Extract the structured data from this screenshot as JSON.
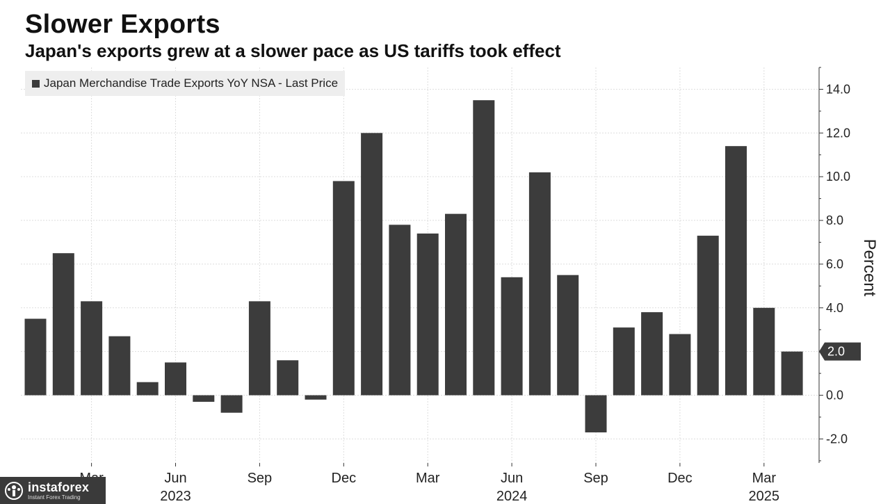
{
  "chart_data": {
    "type": "bar",
    "title": "Slower Exports",
    "subtitle": "Japan's exports grew at a slower pace as US tariffs took effect",
    "ylabel": "Percent",
    "xlabel": "",
    "ylim": [
      -3.1,
      15.0
    ],
    "yticks": [
      14.0,
      12.0,
      10.0,
      8.0,
      6.0,
      4.0,
      0.0,
      -2.0
    ],
    "ytick_labels": [
      "14.0",
      "12.0",
      "10.0",
      "8.0",
      "6.0",
      "4.0",
      "0.0",
      "-2.0"
    ],
    "last_value_label": "2.0",
    "last_value": 2.0,
    "grid": true,
    "legend": [
      "Japan Merchandise Trade Exports YoY NSA - Last Price"
    ],
    "series": [
      {
        "name": "Japan Merchandise Trade Exports YoY NSA - Last Price",
        "color": "#3c3c3c",
        "values": [
          3.5,
          6.5,
          4.3,
          2.7,
          0.6,
          1.5,
          -0.3,
          -0.8,
          4.3,
          1.6,
          -0.2,
          9.8,
          12.0,
          7.8,
          7.4,
          8.3,
          13.5,
          5.4,
          10.2,
          5.5,
          -1.7,
          3.1,
          3.8,
          2.8,
          7.3,
          11.4,
          4.0,
          2.0
        ]
      }
    ],
    "categories": [
      "Jan 2023",
      "Feb 2023",
      "Mar 2023",
      "Apr 2023",
      "May 2023",
      "Jun 2023",
      "Jul 2023",
      "Aug 2023",
      "Sep 2023",
      "Oct 2023",
      "Nov 2023",
      "Dec 2023",
      "Jan 2024",
      "Feb 2024",
      "Mar 2024",
      "Apr 2024",
      "May 2024",
      "Jun 2024",
      "Jul 2024",
      "Aug 2024",
      "Sep 2024",
      "Oct 2024",
      "Nov 2024",
      "Dec 2024",
      "Jan 2025",
      "Feb 2025",
      "Mar 2025",
      "Apr 2025"
    ],
    "xticks": [
      {
        "index": 2,
        "label": "Mar"
      },
      {
        "index": 5,
        "label": "Jun"
      },
      {
        "index": 8,
        "label": "Sep"
      },
      {
        "index": 11,
        "label": "Dec"
      },
      {
        "index": 14,
        "label": "Mar"
      },
      {
        "index": 17,
        "label": "Jun"
      },
      {
        "index": 20,
        "label": "Sep"
      },
      {
        "index": 23,
        "label": "Dec"
      },
      {
        "index": 26,
        "label": "Mar"
      }
    ],
    "year_labels": [
      {
        "index": 5,
        "label": "2023"
      },
      {
        "index": 17,
        "label": "2024"
      },
      {
        "index": 26,
        "label": "2025"
      }
    ]
  },
  "watermark": {
    "name": "instaforex",
    "tagline": "Instant Forex Trading"
  },
  "colors": {
    "bar": "#3c3c3c",
    "grid": "#dddddd",
    "axis": "#333333"
  }
}
